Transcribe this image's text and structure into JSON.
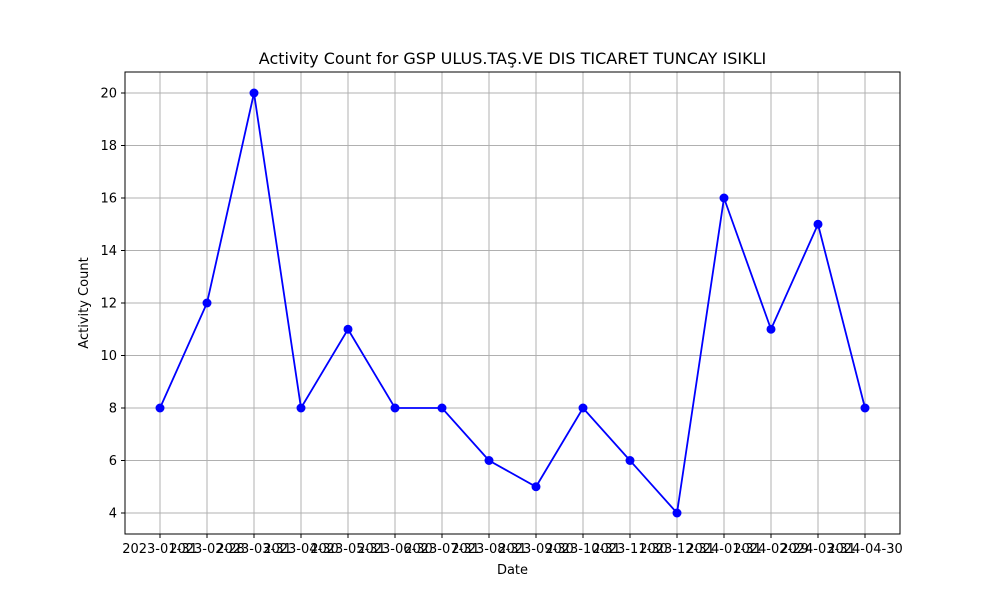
{
  "chart_data": {
    "type": "line",
    "title": "Activity Count for GSP ULUS.TAŞ.VE DIS TICARET TUNCAY ISIKLI",
    "xlabel": "Date",
    "ylabel": "Activity Count",
    "x": [
      "2023-01-31",
      "2023-02-28",
      "2023-03-31",
      "2023-04-30",
      "2023-05-31",
      "2023-06-30",
      "2023-07-31",
      "2023-08-31",
      "2023-09-30",
      "2023-10-31",
      "2023-11-30",
      "2023-12-31",
      "2024-01-31",
      "2024-02-29",
      "2024-03-31",
      "2024-04-30"
    ],
    "series": [
      {
        "values": [
          8,
          12,
          20,
          8,
          11,
          8,
          8,
          6,
          5,
          8,
          6,
          4,
          16,
          11,
          15,
          8
        ],
        "color": "#0000ff",
        "marker": "circle"
      }
    ],
    "yticks": [
      4,
      6,
      8,
      10,
      12,
      14,
      16,
      18,
      20
    ],
    "ylim": [
      3.2,
      20.8
    ],
    "grid": true,
    "legend": "none"
  }
}
